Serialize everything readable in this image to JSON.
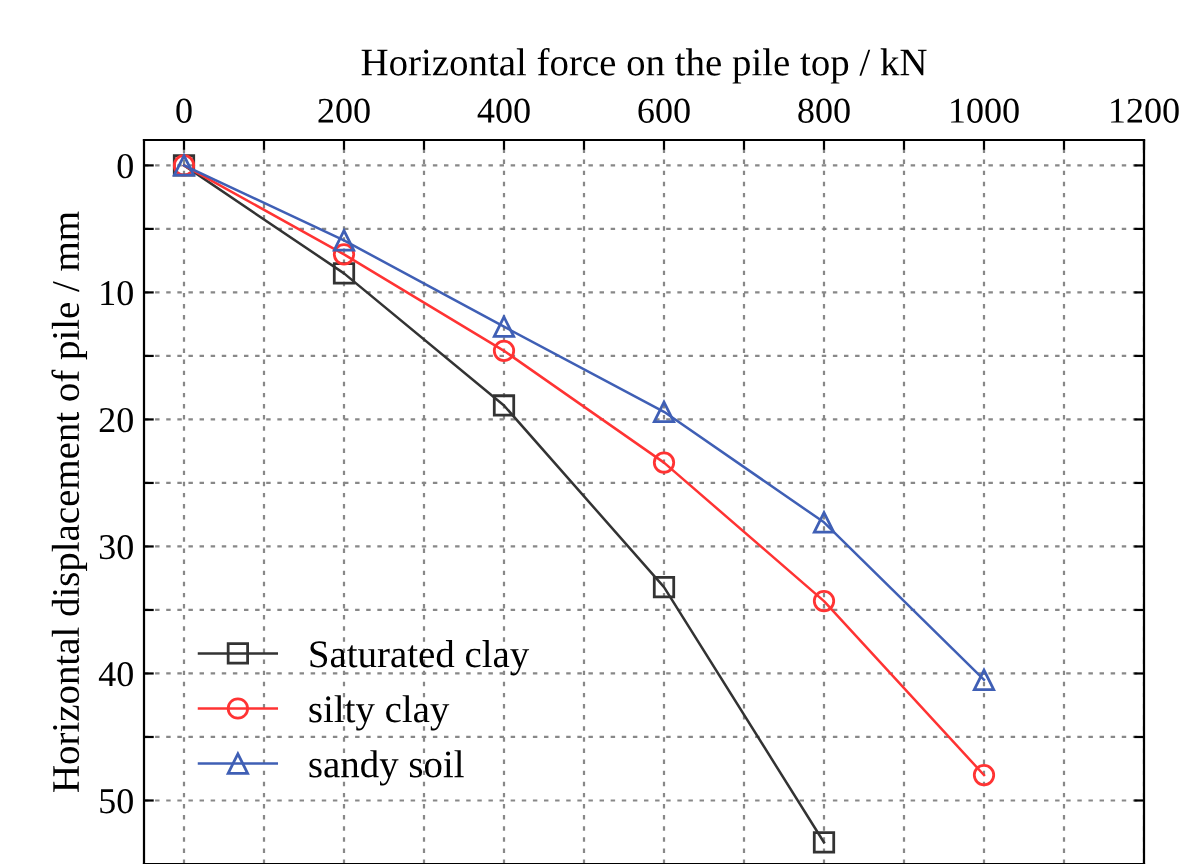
{
  "chart_data": {
    "type": "line",
    "xlabel": "Horizontal force on the pile top / kN",
    "ylabel": "Horizontal displacement of pile / mm",
    "x": [
      0,
      200,
      400,
      600,
      800,
      1000
    ],
    "series": [
      {
        "name": "Saturated clay",
        "color": "#333333",
        "marker": "square",
        "values": [
          0,
          8.5,
          18.9,
          33.2,
          53.3,
          null
        ]
      },
      {
        "name": "silty clay",
        "color": "#ff3333",
        "marker": "circle",
        "values": [
          0,
          7.0,
          14.6,
          23.4,
          34.3,
          48.0
        ]
      },
      {
        "name": "sandy soil",
        "color": "#3f5fb5",
        "marker": "triangle",
        "values": [
          0,
          5.9,
          12.7,
          19.4,
          28.1,
          40.5
        ]
      }
    ],
    "xlim": [
      -50,
      1200
    ],
    "ylim": [
      55,
      -2
    ],
    "xticks": [
      0,
      {
        "value": 100,
        "label": null
      },
      200,
      {
        "value": 300,
        "label": null
      },
      400,
      {
        "value": 500,
        "label": null
      },
      600,
      {
        "value": 700,
        "label": null
      },
      800,
      {
        "value": 900,
        "label": null
      },
      1000,
      {
        "value": 1100,
        "label": null
      },
      1200
    ],
    "yticks": [
      0,
      {
        "value": 5,
        "label": null
      },
      10,
      {
        "value": 15,
        "label": null
      },
      20,
      {
        "value": 25,
        "label": null
      },
      30,
      {
        "value": 35,
        "label": null
      },
      40,
      {
        "value": 45,
        "label": null
      },
      50
    ],
    "grid": true,
    "legend": "bottom left",
    "line_style": "solid"
  }
}
